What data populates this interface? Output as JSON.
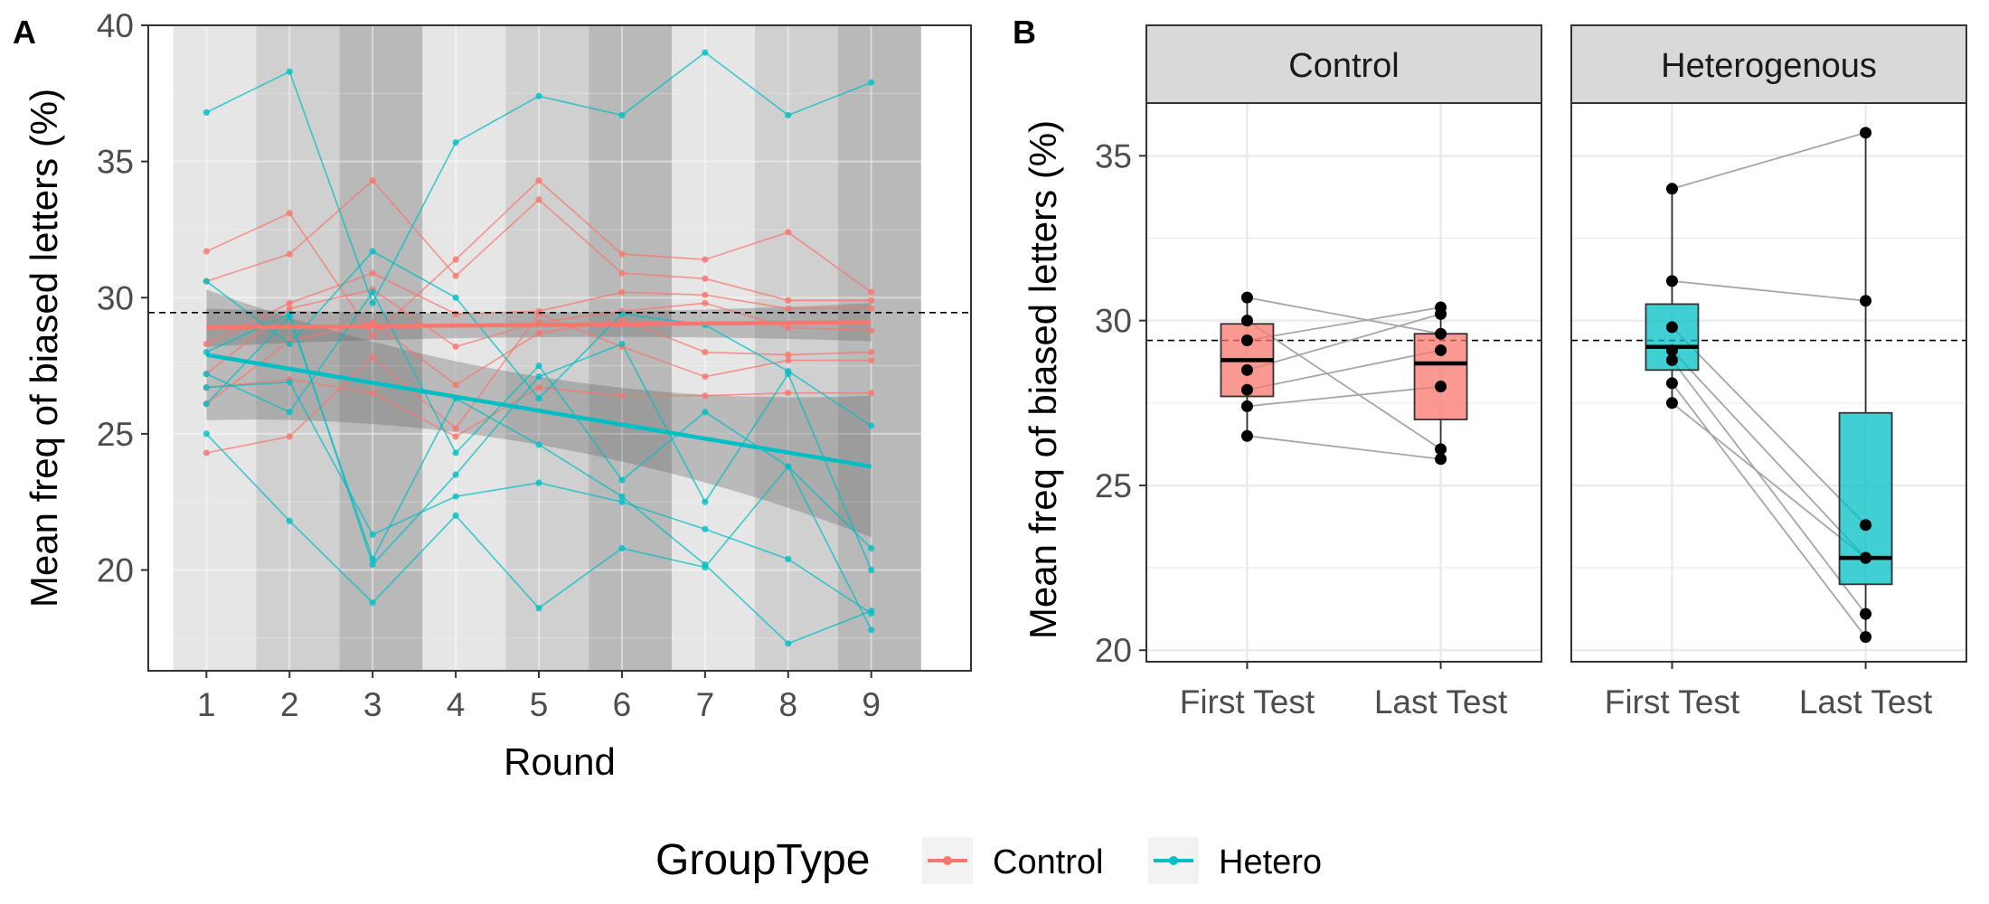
{
  "legend": {
    "title": "GroupType",
    "entries": [
      {
        "label": "Control",
        "color": "#F8766D"
      },
      {
        "label": "Hetero",
        "color": "#00BFC4"
      }
    ]
  },
  "chart_data": [
    {
      "panel": "A",
      "type": "line",
      "xlabel": "Round",
      "ylabel": "Mean freq of biased letters (%)",
      "xlim": [
        0.3,
        10.2
      ],
      "ylim": [
        16.3,
        40.0
      ],
      "x_ticks": [
        1,
        2,
        3,
        4,
        5,
        6,
        7,
        8,
        9
      ],
      "y_ticks": [
        20,
        25,
        30,
        35,
        40
      ],
      "reference_line": 29.45,
      "grid": true,
      "background_bands": [
        {
          "from": 0.6,
          "to": 1.6,
          "shade": "#e6e6e6"
        },
        {
          "from": 1.6,
          "to": 2.6,
          "shade": "#d0d0d0"
        },
        {
          "from": 2.6,
          "to": 3.6,
          "shade": "#b9b9b9"
        },
        {
          "from": 3.6,
          "to": 4.6,
          "shade": "#e6e6e6"
        },
        {
          "from": 4.6,
          "to": 5.6,
          "shade": "#d0d0d0"
        },
        {
          "from": 5.6,
          "to": 6.6,
          "shade": "#b9b9b9"
        },
        {
          "from": 6.6,
          "to": 7.6,
          "shade": "#e6e6e6"
        },
        {
          "from": 7.6,
          "to": 8.6,
          "shade": "#d0d0d0"
        },
        {
          "from": 8.6,
          "to": 9.6,
          "shade": "#b9b9b9"
        }
      ],
      "x": [
        1,
        2,
        3,
        4,
        5,
        6,
        7,
        8,
        9
      ],
      "series": [
        {
          "group": "Control",
          "values": [
            31.7,
            33.1,
            28.6,
            31.4,
            34.3,
            31.6,
            31.4,
            32.4,
            30.2
          ]
        },
        {
          "group": "Control",
          "values": [
            30.6,
            31.6,
            34.3,
            30.8,
            33.6,
            30.9,
            30.7,
            29.9,
            29.9
          ]
        },
        {
          "group": "Control",
          "values": [
            28.3,
            29.8,
            30.9,
            29.4,
            29.5,
            30.2,
            30.1,
            29.6,
            29.6
          ]
        },
        {
          "group": "Control",
          "values": [
            27.2,
            29.6,
            30.3,
            28.2,
            29.1,
            29.5,
            29.8,
            28.9,
            28.8
          ]
        },
        {
          "group": "Control",
          "values": [
            26.1,
            28.4,
            29.1,
            26.8,
            28.7,
            29.2,
            28.0,
            27.9,
            28.0
          ]
        },
        {
          "group": "Control",
          "values": [
            24.3,
            24.9,
            27.8,
            25.2,
            29.4,
            28.2,
            27.1,
            27.7,
            27.7
          ]
        },
        {
          "group": "Control",
          "values": [
            26.7,
            27.0,
            26.5,
            24.9,
            26.7,
            26.4,
            26.4,
            26.5,
            26.5
          ]
        },
        {
          "group": "Hetero",
          "values": [
            36.8,
            38.3,
            29.8,
            35.7,
            37.4,
            36.7,
            39.0,
            36.7,
            37.9
          ]
        },
        {
          "group": "Hetero",
          "values": [
            30.6,
            28.3,
            31.7,
            30.0,
            26.3,
            29.4,
            29.0,
            27.3,
            25.3
          ]
        },
        {
          "group": "Hetero",
          "values": [
            27.2,
            25.8,
            30.2,
            24.3,
            27.5,
            23.3,
            25.8,
            23.8,
            20.8
          ]
        },
        {
          "group": "Hetero",
          "values": [
            26.7,
            26.9,
            21.3,
            22.7,
            23.2,
            22.5,
            21.5,
            20.4,
            18.4
          ]
        },
        {
          "group": "Hetero",
          "values": [
            26.1,
            29.3,
            20.4,
            26.3,
            24.6,
            22.7,
            20.2,
            17.3,
            18.5
          ]
        },
        {
          "group": "Hetero",
          "values": [
            25.0,
            21.8,
            18.8,
            22.0,
            18.6,
            20.8,
            20.1,
            23.8,
            17.8
          ]
        },
        {
          "group": "Hetero",
          "values": [
            28.0,
            29.4,
            20.2,
            23.5,
            27.1,
            28.3,
            22.5,
            27.2,
            20.0
          ]
        }
      ],
      "trend_lines": [
        {
          "group": "Control",
          "from": [
            1,
            28.9
          ],
          "to": [
            9,
            29.1
          ],
          "ci_half_width": [
            0.7,
            0.45,
            0.7
          ]
        },
        {
          "group": "Hetero",
          "from": [
            1,
            27.9
          ],
          "to": [
            9,
            23.8
          ],
          "ci_half_width": [
            2.4,
            1.25,
            2.6
          ]
        }
      ]
    },
    {
      "panel": "B",
      "type": "box",
      "ylabel": "Mean freq of biased letters (%)",
      "ylim": [
        19.65,
        36.6
      ],
      "y_ticks": [
        20,
        25,
        30,
        35
      ],
      "reference_line": 29.4,
      "categories": [
        "First Test",
        "Last Test"
      ],
      "facets": [
        {
          "title": "Control",
          "color": "#F8766D",
          "boxes": [
            {
              "category": "First Test",
              "q1": 27.7,
              "median": 28.8,
              "q3": 29.9,
              "whisker_low": 26.5,
              "whisker_high": 30.7
            },
            {
              "category": "Last Test",
              "q1": 27.0,
              "median": 28.7,
              "q3": 29.6,
              "whisker_low": 25.8,
              "whisker_high": 30.4
            }
          ],
          "pairs": [
            [
              30.7,
              29.6
            ],
            [
              30.0,
              26.1
            ],
            [
              29.4,
              30.4
            ],
            [
              28.5,
              30.2
            ],
            [
              27.9,
              29.1
            ],
            [
              27.4,
              28.0
            ],
            [
              26.5,
              25.8
            ]
          ]
        },
        {
          "title": "Heterogenous",
          "color": "#00BFC4",
          "boxes": [
            {
              "category": "First Test",
              "q1": 28.5,
              "median": 29.2,
              "q3": 30.5,
              "whisker_low": 27.5,
              "whisker_high": 34.0
            },
            {
              "category": "Last Test",
              "q1": 22.0,
              "median": 22.8,
              "q3": 27.2,
              "whisker_low": 20.4,
              "whisker_high": 35.7
            }
          ],
          "pairs": [
            [
              34.0,
              35.7
            ],
            [
              31.2,
              30.6
            ],
            [
              29.8,
              23.8
            ],
            [
              29.1,
              22.8
            ],
            [
              28.8,
              21.1
            ],
            [
              28.1,
              20.4
            ],
            [
              27.5,
              22.8
            ]
          ]
        }
      ]
    }
  ]
}
